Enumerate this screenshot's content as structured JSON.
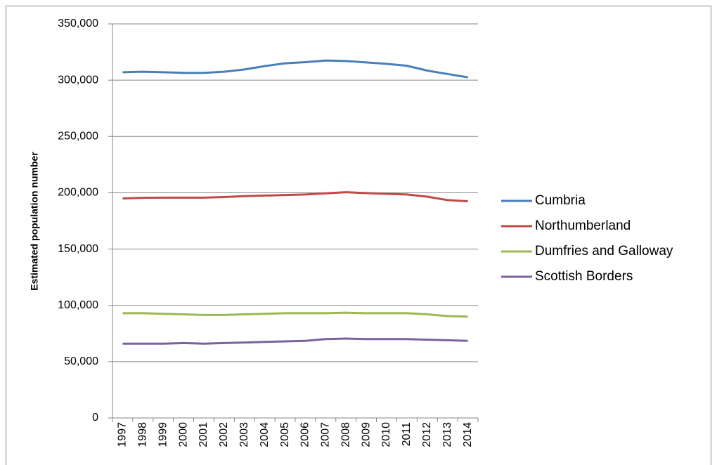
{
  "chart_data": {
    "type": "line",
    "y_label": "Estimated population number",
    "categories": [
      "1997",
      "1998",
      "1999",
      "2000",
      "2001",
      "2002",
      "2003",
      "2004",
      "2005",
      "2006",
      "2007",
      "2008",
      "2009",
      "2010",
      "2011",
      "2012",
      "2013",
      "2014"
    ],
    "series": [
      {
        "name": "Cumbria",
        "color": "#4a7ebb",
        "values": [
          307000,
          307500,
          307000,
          306500,
          306500,
          307500,
          309500,
          312500,
          315000,
          316000,
          317500,
          317000,
          315800,
          314500,
          312800,
          308500,
          305500,
          302500
        ]
      },
      {
        "name": "Northumberland",
        "color": "#be4b48",
        "values": [
          195000,
          195500,
          195700,
          195700,
          195700,
          196200,
          197000,
          197500,
          198000,
          198500,
          199500,
          200500,
          199700,
          199000,
          198500,
          196500,
          193500,
          192500
        ]
      },
      {
        "name": "Dumfries and Galloway",
        "color": "#98b954",
        "values": [
          93000,
          93000,
          92500,
          92000,
          91500,
          91500,
          92000,
          92500,
          93000,
          93000,
          93000,
          93500,
          93000,
          93000,
          93000,
          92000,
          90500,
          90000
        ]
      },
      {
        "name": "Scottish Borders",
        "color": "#7d60a0",
        "values": [
          66000,
          66000,
          66000,
          66500,
          66000,
          66500,
          67000,
          67500,
          68000,
          68500,
          70000,
          70500,
          70000,
          70000,
          70000,
          69500,
          69000,
          68500
        ]
      }
    ],
    "ylim": [
      0,
      350000
    ],
    "yticks": [
      0,
      {
        "value": 50000,
        "label": "50,000"
      },
      {
        "value": 100000,
        "label": "100,000"
      },
      {
        "value": 150000,
        "label": "150,000"
      },
      {
        "value": 200000,
        "label": "200,000"
      },
      {
        "value": 250000,
        "label": "250,000"
      },
      {
        "value": 300000,
        "label": "300,000"
      },
      {
        "value": 350000,
        "label": "350,000"
      }
    ],
    "grid": true,
    "legend": "right"
  }
}
